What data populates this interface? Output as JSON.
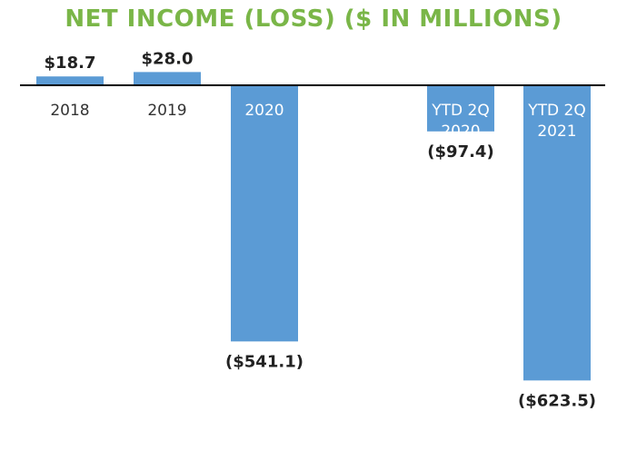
{
  "chart_data": {
    "type": "bar",
    "title": "NET INCOME (LOSS) ($ IN MILLIONS)",
    "categories": [
      "2018",
      "2019",
      "2020",
      "YTD 2Q 2020",
      "YTD 2Q 2021"
    ],
    "values": [
      18.7,
      28.0,
      -541.1,
      -97.4,
      -623.5
    ],
    "data_labels": [
      "$18.7",
      "$28.0",
      "($541.1)",
      "($97.4)",
      "($623.5)"
    ],
    "xlabel": "",
    "ylabel": "",
    "grid": false,
    "legend": "none"
  },
  "colors": {
    "title": "#7ab648",
    "bar": "#5b9bd5",
    "axis": "#000000",
    "label_outside": "#333333",
    "label_inside": "#ffffff"
  }
}
